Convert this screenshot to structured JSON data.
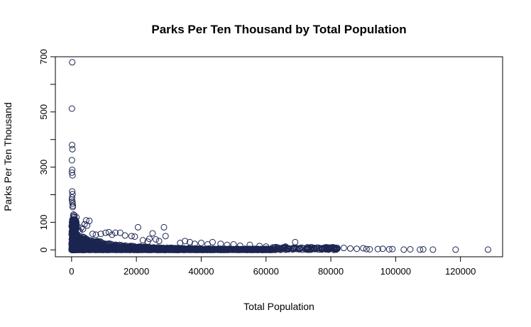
{
  "chart_data": {
    "type": "scatter",
    "title": "Parks Per Ten Thousand by Total Population",
    "xlabel": "Total Population",
    "ylabel": "Parks Per Ten Thousand",
    "xlim": [
      -5000,
      133000
    ],
    "ylim": [
      -25,
      700
    ],
    "x_ticks": [
      0,
      20000,
      40000,
      60000,
      80000,
      100000,
      120000
    ],
    "x_tick_labels": [
      "0",
      "20000",
      "40000",
      "60000",
      "80000",
      "100000",
      "120000"
    ],
    "y_ticks": [
      0,
      100,
      300,
      500,
      700
    ],
    "y_tick_labels": [
      "0",
      "100",
      "300",
      "500",
      "700"
    ],
    "y_minor_ticks": [
      200,
      400,
      600
    ],
    "marker": "open-circle",
    "point_color": "#1b2550",
    "grid": false,
    "legend": "none",
    "points": [
      [
        200,
        680
      ],
      [
        100,
        512
      ],
      [
        150,
        380
      ],
      [
        250,
        365
      ],
      [
        100,
        325
      ],
      [
        200,
        290
      ],
      [
        100,
        280
      ],
      [
        300,
        270
      ],
      [
        200,
        212
      ],
      [
        300,
        202
      ],
      [
        150,
        190
      ],
      [
        100,
        182
      ],
      [
        250,
        175
      ],
      [
        300,
        168
      ],
      [
        400,
        160
      ],
      [
        350,
        155
      ],
      [
        600,
        128
      ],
      [
        500,
        122
      ],
      [
        900,
        125
      ],
      [
        800,
        118
      ],
      [
        1500,
        118
      ],
      [
        700,
        110
      ],
      [
        1000,
        105
      ],
      [
        4500,
        107
      ],
      [
        5500,
        105
      ],
      [
        4000,
        93
      ],
      [
        4800,
        88
      ],
      [
        3000,
        80
      ],
      [
        3500,
        75
      ],
      [
        2000,
        72
      ],
      [
        1200,
        95
      ],
      [
        1800,
        85
      ],
      [
        2500,
        68
      ],
      [
        6500,
        58
      ],
      [
        7500,
        55
      ],
      [
        9000,
        58
      ],
      [
        10500,
        62
      ],
      [
        11500,
        64
      ],
      [
        12500,
        55
      ],
      [
        13500,
        62
      ],
      [
        15000,
        62
      ],
      [
        16500,
        52
      ],
      [
        18500,
        50
      ],
      [
        19500,
        48
      ],
      [
        20500,
        82
      ],
      [
        28500,
        82
      ],
      [
        25000,
        60
      ],
      [
        29000,
        50
      ],
      [
        24000,
        40
      ],
      [
        26000,
        38
      ],
      [
        22000,
        35
      ],
      [
        23500,
        30
      ],
      [
        27000,
        32
      ],
      [
        33500,
        25
      ],
      [
        35000,
        32
      ],
      [
        36500,
        28
      ],
      [
        38000,
        22
      ],
      [
        40000,
        25
      ],
      [
        42000,
        20
      ],
      [
        43500,
        28
      ],
      [
        46000,
        22
      ],
      [
        48000,
        18
      ],
      [
        50000,
        20
      ],
      [
        52000,
        15
      ],
      [
        55000,
        18
      ],
      [
        58000,
        14
      ],
      [
        60000,
        12
      ],
      [
        63000,
        10
      ],
      [
        66000,
        12
      ],
      [
        69000,
        28
      ],
      [
        71000,
        8
      ],
      [
        74000,
        10
      ],
      [
        77000,
        6
      ],
      [
        80000,
        5
      ],
      [
        82000,
        4
      ],
      [
        84000,
        7
      ],
      [
        86000,
        5
      ],
      [
        88000,
        4
      ],
      [
        90000,
        6
      ],
      [
        91000,
        3
      ],
      [
        92000,
        2
      ],
      [
        94500,
        3
      ],
      [
        96000,
        4
      ],
      [
        98000,
        2
      ],
      [
        99000,
        3
      ],
      [
        102500,
        1
      ],
      [
        104500,
        2
      ],
      [
        107500,
        1
      ],
      [
        108500,
        2
      ],
      [
        111500,
        1
      ],
      [
        118500,
        1
      ],
      [
        128500,
        1
      ]
    ]
  }
}
